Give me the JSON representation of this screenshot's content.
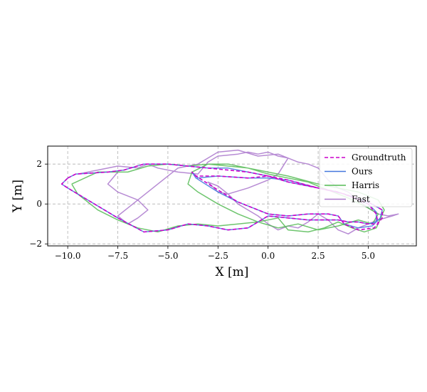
{
  "chart_data": {
    "type": "line",
    "title": "",
    "xlabel": "X [m]",
    "ylabel": "Y [m]",
    "xlim": [
      -11.0,
      7.4
    ],
    "ylim": [
      -2.1,
      2.9
    ],
    "xticks": [
      -10.0,
      -7.5,
      -5.0,
      -2.5,
      0.0,
      2.5,
      5.0
    ],
    "xtick_labels": [
      "−10.0",
      "−7.5",
      "−5.0",
      "−2.5",
      "0.0",
      "2.5",
      "5.0"
    ],
    "yticks": [
      -2,
      0,
      2
    ],
    "ytick_labels": [
      "−2",
      "0",
      "2"
    ],
    "grid": true,
    "legend_position": "top-right",
    "series": [
      {
        "name": "Groundtruth",
        "color": "#cc00cc",
        "style": "dashed",
        "x": [
          -10.0,
          -9.6,
          -8.0,
          -7.2,
          -6.2,
          -5.0,
          -4.0,
          -3.0,
          -2.0,
          -1.0,
          0.0,
          1.0,
          2.5,
          3.8,
          5.0,
          5.7,
          5.7,
          5.3,
          4.5,
          3.8,
          3.5,
          3.0,
          2.0,
          1.0,
          0.0,
          -0.5,
          -1.5,
          -2.5,
          -3.6,
          -3.8,
          -3.6,
          -2.5,
          -1.0,
          0.0,
          1.0,
          2.5,
          3.5,
          4.3,
          5.0,
          5.4,
          5.5,
          5.0,
          4.5,
          4.0,
          3.5,
          2.0,
          1.0,
          0.0,
          -1.0,
          -2.0,
          -3.0,
          -4.0,
          -5.0,
          -6.2,
          -7.5,
          -9.0,
          -10.0,
          -10.3,
          -10.0
        ],
        "y": [
          1.3,
          1.5,
          1.6,
          1.7,
          2.0,
          2.0,
          1.9,
          1.8,
          1.7,
          1.6,
          1.4,
          1.1,
          0.8,
          0.5,
          0.1,
          -0.3,
          -0.7,
          -1.2,
          -1.3,
          -1.0,
          -0.6,
          -0.5,
          -0.5,
          -0.6,
          -0.5,
          -0.3,
          0.1,
          0.7,
          1.4,
          1.6,
          1.4,
          1.4,
          1.3,
          1.4,
          1.2,
          0.8,
          0.6,
          0.3,
          0.0,
          -0.5,
          -1.0,
          -1.0,
          -0.9,
          -0.9,
          -0.8,
          -0.8,
          -0.7,
          -0.6,
          -1.2,
          -1.3,
          -1.1,
          -1.0,
          -1.3,
          -1.4,
          -0.7,
          0.2,
          0.8,
          1.0,
          1.3
        ]
      },
      {
        "name": "Ours",
        "color": "#4477dd",
        "style": "solid",
        "x": [
          -10.0,
          -9.6,
          -8.0,
          -7.2,
          -6.2,
          -5.0,
          -4.0,
          -3.0,
          -2.0,
          -1.0,
          0.0,
          1.0,
          2.5,
          3.8,
          5.0,
          5.7,
          5.6,
          5.2,
          4.5,
          3.8,
          3.5,
          3.0,
          2.0,
          1.0,
          0.0,
          -0.5,
          -1.5,
          -2.5,
          -3.6,
          -3.8,
          -3.5,
          -2.5,
          -1.0,
          0.0,
          1.0,
          2.5,
          3.5,
          4.3,
          5.0,
          5.4,
          5.4,
          5.0,
          4.5,
          4.0,
          3.5,
          2.0,
          1.0,
          0.0,
          -1.0,
          -2.0,
          -3.0,
          -4.0,
          -5.0,
          -6.2,
          -7.5,
          -9.0,
          -10.0,
          -10.3,
          -10.0
        ],
        "y": [
          1.3,
          1.5,
          1.6,
          1.7,
          2.0,
          2.0,
          1.9,
          1.8,
          1.8,
          1.6,
          1.4,
          1.1,
          0.8,
          0.5,
          0.1,
          -0.3,
          -0.7,
          -1.1,
          -1.2,
          -1.0,
          -0.6,
          -0.5,
          -0.5,
          -0.6,
          -0.5,
          -0.3,
          0.1,
          0.6,
          1.3,
          1.6,
          1.3,
          1.4,
          1.3,
          1.3,
          1.2,
          0.8,
          0.6,
          0.3,
          0.0,
          -0.4,
          -0.9,
          -1.0,
          -0.9,
          -0.9,
          -0.8,
          -0.8,
          -0.7,
          -0.6,
          -1.2,
          -1.3,
          -1.1,
          -1.0,
          -1.3,
          -1.4,
          -0.7,
          0.2,
          0.8,
          1.0,
          1.3
        ]
      },
      {
        "name": "Harris",
        "color": "#55bb55",
        "style": "solid",
        "x": [
          -9.8,
          -8.5,
          -7.0,
          -6.0,
          -5.0,
          -4.0,
          -3.0,
          -2.0,
          -1.0,
          0.0,
          1.0,
          2.5,
          3.5,
          4.5,
          5.5,
          5.8,
          5.4,
          4.8,
          4.2,
          3.5,
          2.8,
          2.0,
          1.0,
          0.5,
          -0.5,
          -1.5,
          -2.5,
          -3.5,
          -4.0,
          -3.8,
          -3.0,
          -2.0,
          -1.0,
          0.0,
          1.0,
          2.0,
          3.0,
          4.0,
          5.0,
          5.5,
          5.2,
          4.5,
          3.5,
          2.5,
          1.5,
          0.5,
          -0.5,
          -1.5,
          -2.5,
          -3.5,
          -4.5,
          -5.5,
          -6.5,
          -7.5,
          -8.5,
          -9.5,
          -9.8
        ],
        "y": [
          1.0,
          1.6,
          1.6,
          1.9,
          2.0,
          1.9,
          2.0,
          2.0,
          1.8,
          1.6,
          1.4,
          1.0,
          0.8,
          0.6,
          0.2,
          -0.3,
          -1.2,
          -1.4,
          -1.2,
          -0.9,
          -1.2,
          -1.4,
          -1.3,
          -0.7,
          -0.9,
          -0.5,
          0.0,
          0.6,
          1.0,
          1.6,
          2.0,
          1.9,
          1.8,
          1.5,
          1.3,
          1.1,
          0.7,
          0.3,
          -0.2,
          -0.5,
          -1.0,
          -0.8,
          -1.1,
          -1.3,
          -1.0,
          -1.2,
          -0.9,
          -1.0,
          -1.1,
          -1.0,
          -1.1,
          -1.4,
          -1.2,
          -0.8,
          -0.3,
          0.5,
          1.0
        ]
      },
      {
        "name": "Fast",
        "color": "#aa77cc",
        "style": "solid",
        "x": [
          -9.5,
          -8.5,
          -7.5,
          -6.5,
          -6.0,
          -5.5,
          -4.5,
          -3.5,
          -3.0,
          -2.5,
          -1.5,
          -1.0,
          -0.5,
          0.0,
          0.5,
          1.0,
          1.5,
          2.0,
          2.5,
          3.0,
          3.5,
          4.0,
          4.5,
          5.0,
          5.5,
          6.0,
          6.5,
          6.2,
          5.5,
          5.0,
          4.5,
          4.0,
          3.5,
          3.0,
          2.5,
          2.0,
          1.5,
          1.0,
          0.5,
          0.0,
          -0.5,
          -1.0,
          -1.5,
          -2.0,
          -2.5,
          -3.0,
          -2.5,
          -2.0,
          -1.0,
          0.0,
          0.5,
          1.0,
          0.5,
          -0.5,
          -1.5,
          -2.5,
          -3.5,
          -4.5,
          -5.5,
          -6.5,
          -7.0,
          -7.5,
          -7.0,
          -6.5,
          -6.0,
          -6.5,
          -7.5,
          -8.0,
          -7.5
        ],
        "y": [
          1.5,
          1.7,
          1.9,
          1.8,
          2.0,
          1.8,
          1.6,
          1.5,
          2.1,
          2.4,
          2.5,
          2.6,
          2.5,
          2.6,
          2.4,
          2.3,
          2.1,
          2.0,
          1.8,
          1.2,
          0.8,
          0.6,
          0.2,
          -0.2,
          -0.5,
          -0.6,
          -0.5,
          -0.6,
          -0.8,
          -1.0,
          -1.2,
          -1.5,
          -1.3,
          -0.8,
          -0.5,
          -0.9,
          -1.2,
          -1.1,
          -1.3,
          -1.0,
          -0.6,
          -0.3,
          0.0,
          0.5,
          0.9,
          1.1,
          0.6,
          0.5,
          0.8,
          1.2,
          1.5,
          2.3,
          2.5,
          2.4,
          2.7,
          2.6,
          2.0,
          1.8,
          1.0,
          0.2,
          -0.2,
          -0.6,
          -1.0,
          -0.7,
          -0.3,
          0.2,
          0.6,
          1.0,
          1.6
        ]
      }
    ]
  }
}
